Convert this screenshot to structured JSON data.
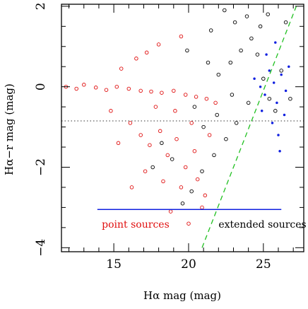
{
  "chart_data": {
    "type": "scatter",
    "xlabel": "Hα mag  (mag)",
    "ylabel": "Hα−r mag  (mag)",
    "xlim": [
      11.5,
      27.7
    ],
    "ylim": [
      -4.1,
      2.05
    ],
    "x_ticks": [
      15,
      20,
      25
    ],
    "y_ticks": [
      2,
      0,
      -2,
      -4
    ],
    "reference_lines": {
      "horizontal_dotted_y": -0.85,
      "horizontal_solid_y": -3.05,
      "horizontal_solid_x_range": [
        13.9,
        26.2
      ],
      "diagonal_dashed": [
        [
          20.9,
          -4.0
        ],
        [
          27.2,
          2.0
        ]
      ]
    },
    "annotations": [
      {
        "text": "point sources",
        "x": 14.2,
        "y": -3.5,
        "color": "#e01010"
      },
      {
        "text": "extended sources",
        "x": 22.0,
        "y": -3.5,
        "color": "#000000"
      }
    ],
    "series": [
      {
        "name": "point sources",
        "color": "#e01010",
        "marker": "open-circle",
        "points": [
          [
            11.8,
            0.0
          ],
          [
            12.5,
            -0.05
          ],
          [
            13.0,
            0.05
          ],
          [
            13.8,
            -0.02
          ],
          [
            14.5,
            -0.08
          ],
          [
            15.2,
            0.0
          ],
          [
            16.0,
            -0.05
          ],
          [
            16.8,
            -0.1
          ],
          [
            17.5,
            -0.12
          ],
          [
            18.2,
            -0.15
          ],
          [
            19.0,
            -0.1
          ],
          [
            19.8,
            -0.2
          ],
          [
            20.5,
            -0.25
          ],
          [
            21.2,
            -0.3
          ],
          [
            15.5,
            0.45
          ],
          [
            16.5,
            0.7
          ],
          [
            17.2,
            0.85
          ],
          [
            18.0,
            1.05
          ],
          [
            19.5,
            1.25
          ],
          [
            16.1,
            -0.9
          ],
          [
            16.8,
            -1.2
          ],
          [
            17.4,
            -1.45
          ],
          [
            18.1,
            -1.1
          ],
          [
            18.6,
            -1.7
          ],
          [
            19.2,
            -1.3
          ],
          [
            19.8,
            -2.0
          ],
          [
            20.4,
            -1.6
          ],
          [
            17.1,
            -2.1
          ],
          [
            18.3,
            -2.35
          ],
          [
            19.5,
            -2.5
          ],
          [
            20.6,
            -2.3
          ],
          [
            21.1,
            -2.7
          ],
          [
            18.8,
            -3.1
          ],
          [
            20.0,
            -3.4
          ],
          [
            20.9,
            -3.0
          ],
          [
            14.8,
            -0.6
          ],
          [
            15.3,
            -1.4
          ],
          [
            16.2,
            -2.5
          ],
          [
            17.8,
            -0.5
          ],
          [
            19.1,
            -0.6
          ],
          [
            20.2,
            -0.9
          ],
          [
            21.4,
            -1.2
          ],
          [
            21.8,
            -0.4
          ]
        ]
      },
      {
        "name": "extended sources",
        "color": "#000000",
        "marker": "open-circle",
        "points": [
          [
            22.0,
            0.3
          ],
          [
            22.8,
            0.6
          ],
          [
            23.5,
            0.9
          ],
          [
            24.2,
            1.2
          ],
          [
            24.8,
            1.5
          ],
          [
            25.3,
            1.8
          ],
          [
            21.5,
            1.4
          ],
          [
            22.4,
            1.9
          ],
          [
            23.1,
            1.6
          ],
          [
            23.9,
            1.75
          ],
          [
            24.6,
            0.8
          ],
          [
            25.0,
            0.2
          ],
          [
            25.4,
            -0.3
          ],
          [
            25.8,
            -0.6
          ],
          [
            24.0,
            -0.4
          ],
          [
            23.2,
            -0.9
          ],
          [
            22.5,
            -1.3
          ],
          [
            21.7,
            -1.7
          ],
          [
            20.9,
            -2.1
          ],
          [
            20.2,
            -2.6
          ],
          [
            19.6,
            -2.9
          ],
          [
            18.9,
            -1.8
          ],
          [
            18.2,
            -1.4
          ],
          [
            17.6,
            -2.0
          ],
          [
            22.9,
            -0.2
          ],
          [
            21.9,
            -0.7
          ],
          [
            21.0,
            -1.0
          ],
          [
            20.4,
            -0.5
          ],
          [
            19.9,
            0.9
          ],
          [
            21.3,
            0.6
          ],
          [
            26.2,
            0.4
          ],
          [
            26.8,
            -0.3
          ],
          [
            26.5,
            1.6
          ]
        ]
      },
      {
        "name": "",
        "color": "#1020e0",
        "marker": "dot",
        "points": [
          [
            24.4,
            0.2
          ],
          [
            24.8,
            0.0
          ],
          [
            25.1,
            -0.2
          ],
          [
            25.4,
            0.4
          ],
          [
            25.7,
            0.1
          ],
          [
            25.9,
            -0.4
          ],
          [
            26.2,
            0.3
          ],
          [
            26.5,
            -0.1
          ],
          [
            25.2,
            0.8
          ],
          [
            24.9,
            -0.6
          ],
          [
            25.6,
            -0.9
          ],
          [
            26.0,
            -1.2
          ],
          [
            26.4,
            -0.7
          ],
          [
            26.7,
            0.5
          ],
          [
            25.8,
            1.1
          ],
          [
            26.1,
            -1.6
          ]
        ]
      }
    ]
  }
}
